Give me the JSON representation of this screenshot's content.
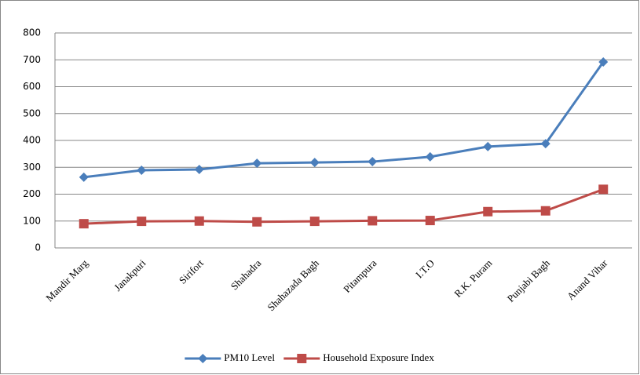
{
  "chart_data": {
    "type": "line",
    "categories": [
      "Mandir Marg",
      "Janakpuri",
      "Sirifort",
      "Shahadra",
      "Shahazada Bagh",
      "Pitampura",
      "I.T.O",
      "R.K. Puram",
      "Punjabi Bagh",
      "Anand Vihar"
    ],
    "series": [
      {
        "name": "PM10 Level",
        "color": "#4a7ebb",
        "marker": "diamond",
        "values": [
          263,
          289,
          292,
          315,
          318,
          321,
          339,
          377,
          388,
          692
        ]
      },
      {
        "name": "Household Exposure Index",
        "color": "#be4b48",
        "marker": "square",
        "values": [
          90,
          99,
          100,
          97,
          99,
          101,
          102,
          135,
          138,
          218
        ]
      }
    ],
    "ylim": [
      0,
      800
    ],
    "yticks": [
      0,
      100,
      200,
      300,
      400,
      500,
      600,
      700,
      800
    ],
    "grid": true,
    "legend": "bottom"
  }
}
